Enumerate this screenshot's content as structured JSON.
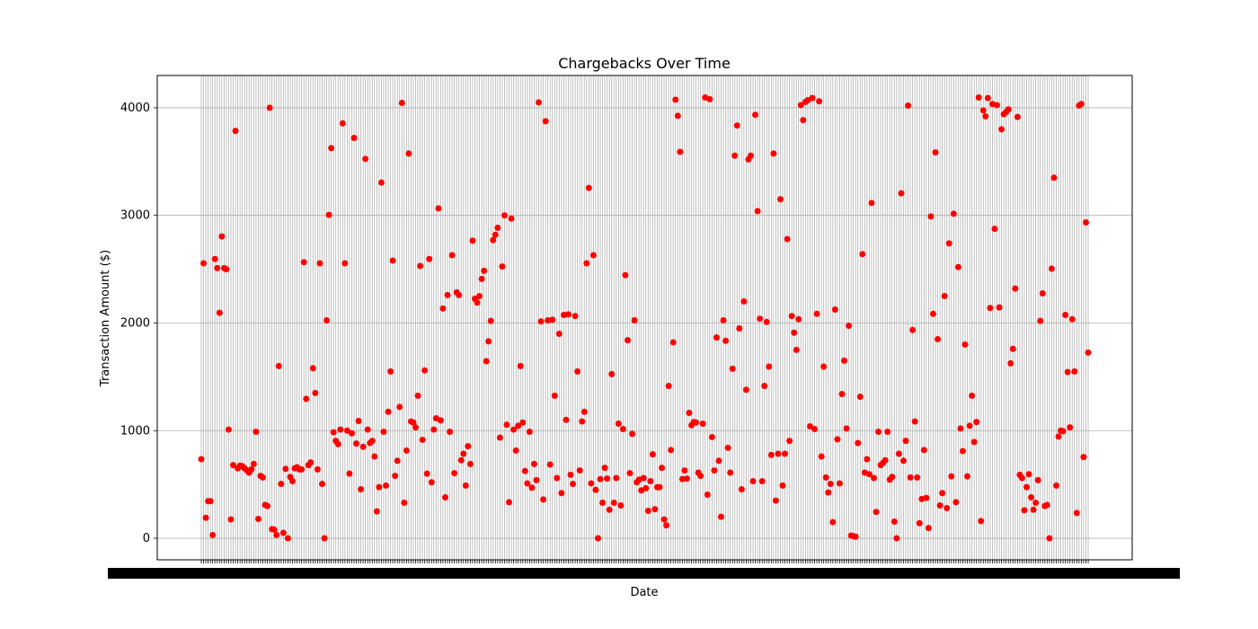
{
  "chart_data": {
    "type": "scatter",
    "title": "Chargebacks Over Time",
    "xlabel": "Date",
    "ylabel": "Transaction Amount ($)",
    "y_ticks": [
      0,
      1000,
      2000,
      3000,
      4000
    ],
    "ylim": [
      -200,
      4300
    ],
    "grid": true,
    "marker_color": "#ff0000",
    "y": [
      735,
      2555,
      190,
      345,
      345,
      30,
      2595,
      2510,
      2095,
      2805,
      2510,
      2500,
      1010,
      175,
      680,
      3785,
      650,
      675,
      670,
      650,
      630,
      610,
      640,
      690,
      990,
      180,
      580,
      565,
      310,
      300,
      4000,
      85,
      80,
      30,
      1600,
      505,
      50,
      645,
      0,
      570,
      530,
      650,
      660,
      640,
      640,
      2565,
      1295,
      680,
      705,
      1580,
      1350,
      640,
      2555,
      505,
      0,
      2025,
      3005,
      3625,
      985,
      905,
      875,
      1010,
      3855,
      2555,
      1000,
      600,
      975,
      3720,
      880,
      1090,
      455,
      850,
      3525,
      1010,
      885,
      905,
      760,
      250,
      475,
      3305,
      990,
      490,
      1175,
      1550,
      2580,
      580,
      720,
      1220,
      4045,
      330,
      815,
      3575,
      1085,
      1075,
      1030,
      1325,
      2530,
      915,
      1560,
      600,
      2595,
      520,
      1010,
      1115,
      3065,
      1095,
      2135,
      380,
      2260,
      990,
      2630,
      605,
      2285,
      2260,
      725,
      785,
      490,
      855,
      690,
      2765,
      2225,
      2190,
      2250,
      2410,
      2485,
      1645,
      1830,
      2020,
      2770,
      2820,
      2885,
      935,
      2525,
      3000,
      1055,
      335,
      2970,
      1010,
      815,
      1045,
      1600,
      1075,
      625,
      510,
      990,
      470,
      690,
      540,
      4050,
      2015,
      360,
      3875,
      2025,
      685,
      2030,
      1325,
      560,
      1900,
      420,
      2075,
      1100,
      2080,
      590,
      505,
      2065,
      1550,
      630,
      1085,
      1175,
      2555,
      3255,
      510,
      2630,
      450,
      0,
      550,
      330,
      655,
      555,
      265,
      1525,
      330,
      560,
      1065,
      305,
      1015,
      2445,
      1840,
      605,
      970,
      2025,
      520,
      545,
      445,
      560,
      465,
      255,
      530,
      780,
      270,
      475,
      475,
      655,
      175,
      120,
      1415,
      820,
      1820,
      4075,
      3925,
      3590,
      550,
      630,
      555,
      1165,
      1050,
      1080,
      1075,
      610,
      580,
      1065,
      4095,
      405,
      4080,
      940,
      630,
      1865,
      720,
      200,
      2025,
      1835,
      840,
      610,
      1575,
      3555,
      3835,
      1950,
      455,
      2200,
      1380,
      3520,
      3555,
      530,
      3935,
      3040,
      2040,
      530,
      1415,
      2010,
      1595,
      775,
      3575,
      350,
      785,
      3150,
      490,
      785,
      2780,
      905,
      2065,
      1910,
      1750,
      2035,
      4025,
      3885,
      4055,
      4070,
      1040,
      4090,
      1015,
      2085,
      4060,
      760,
      1595,
      565,
      425,
      505,
      150,
      2125,
      920,
      510,
      1340,
      1650,
      1020,
      1975,
      25,
      20,
      15,
      885,
      1315,
      2640,
      610,
      735,
      595,
      3115,
      560,
      245,
      990,
      680,
      700,
      725,
      990,
      545,
      570,
      155,
      0,
      785,
      3205,
      720,
      905,
      4020,
      565,
      1935,
      1085,
      565,
      140,
      365,
      820,
      375,
      95,
      2990,
      2085,
      3585,
      1850,
      305,
      420,
      2250,
      280,
      2740,
      575,
      3015,
      335,
      2520,
      1020,
      810,
      1800,
      575,
      1045,
      1325,
      895,
      1080,
      4095,
      160,
      3975,
      3920,
      4090,
      2140,
      4035,
      2875,
      4025,
      2145,
      3800,
      3940,
      3960,
      3985,
      1625,
      1760,
      2320,
      3915,
      590,
      560,
      260,
      475,
      595,
      380,
      265,
      330,
      540,
      2020,
      2275,
      300,
      310,
      0,
      2505,
      3350,
      490,
      945,
      1000,
      995,
      2075,
      1545,
      1030,
      2035,
      1550,
      235,
      4020,
      4035,
      755,
      2935,
      1725
    ]
  }
}
